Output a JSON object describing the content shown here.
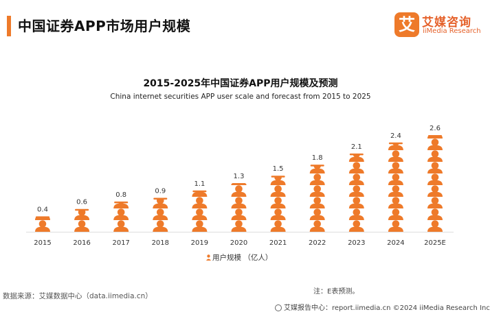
{
  "header": {
    "title": "中国证券APP市场用户规模"
  },
  "logo": {
    "mark": "艾",
    "cn": "艾媒咨询",
    "en": "iiMedia Research"
  },
  "chart_data": {
    "type": "bar",
    "title": "2015-2025年中国证券APP用户规模及预测",
    "subtitle": "China internet securities APP user scale and forecast from 2015 to 2025",
    "categories": [
      "2015",
      "2016",
      "2017",
      "2018",
      "2019",
      "2020",
      "2021",
      "2022",
      "2023",
      "2024",
      "2025E"
    ],
    "series": [
      {
        "name": "用户规模（亿人）",
        "values": [
          0.4,
          0.6,
          0.8,
          0.9,
          1.1,
          1.3,
          1.5,
          1.8,
          2.1,
          2.4,
          2.6
        ]
      }
    ],
    "data_labels": [
      "0.4",
      "0.6",
      "0.8",
      "0.9",
      "1.1",
      "1.3",
      "1.5",
      "1.8",
      "2.1",
      "2.4",
      "2.6"
    ],
    "ylim": [
      0,
      2.6
    ],
    "legend": "bottom-center",
    "color": "#ee7a2a"
  },
  "legend": {
    "label": "用户规模 （亿人）"
  },
  "note": "注：E表预测。",
  "source": "数据来源：艾媒数据中心（data.iimedia.cn）",
  "footer": {
    "text": "艾媒报告中心：report.iimedia.cn    ©2024  iiMedia Research  Inc"
  }
}
